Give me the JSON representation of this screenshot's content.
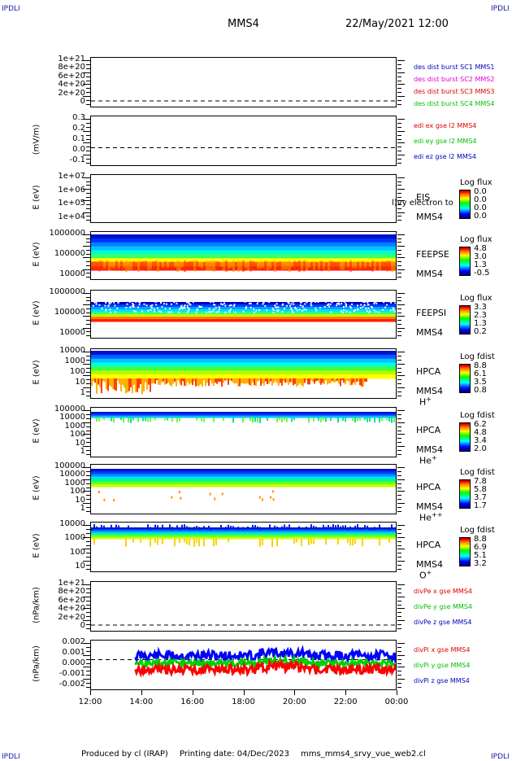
{
  "corner_label": "IPDLI",
  "header": {
    "spacecraft": "MMS4",
    "date": "22/May/2021 12:00"
  },
  "footer": {
    "produced_by": "Produced by cl (IRAP)",
    "printing_date": "Printing date: 04/Dec/2023",
    "file": "mms_mms4_srvy_vue_web2.cl"
  },
  "colors": {
    "red": "#ff0000",
    "green": "#00c000",
    "blue": "#0000ff",
    "magenta": "#e000e0"
  },
  "chart_data": [
    {
      "type": "line",
      "title": "des dist burst",
      "ylabel": "",
      "yticks": [
        "1e+21",
        "8e+20",
        "6e+20",
        "4e+20",
        "2e+20",
        "0"
      ],
      "series": [
        {
          "name": "des dist burst SC1 MMS1",
          "color": "#0000c0"
        },
        {
          "name": "des dist burst SC2 MMS2",
          "color": "#e000e0"
        },
        {
          "name": "des dist burst SC3 MMS3",
          "color": "#e00000"
        },
        {
          "name": "des dist burst SC4 MMS4",
          "color": "#00c000"
        }
      ]
    },
    {
      "type": "line",
      "ylabel": "(mV/m)",
      "yticks": [
        "0.3",
        "0.2",
        "0.1",
        "0.0",
        "-0.1"
      ],
      "series": [
        {
          "name": "edi ex gse l2 MMS4",
          "color": "#e00000"
        },
        {
          "name": "edi ey gse l2 MMS4",
          "color": "#00c000"
        },
        {
          "name": "edi ez gse l2 MMS4",
          "color": "#0000c0"
        }
      ]
    },
    {
      "type": "heatmap",
      "ylabel": "E (eV)",
      "yticks": [
        "1e+07",
        "1e+06",
        "1e+05",
        "1e+04"
      ],
      "instrument": "EIS",
      "sc": "MMS4",
      "overlay_text": "l)vy electron to",
      "colorbar": {
        "title": "Log flux",
        "values": [
          "0.0",
          "0.0",
          "0.0",
          "0.0"
        ]
      }
    },
    {
      "type": "heatmap",
      "ylabel": "E (eV)",
      "yticks": [
        "1000000",
        "100000",
        "10000"
      ],
      "instrument": "FEEPSE",
      "sc": "MMS4",
      "colorbar": {
        "title": "Log flux",
        "values": [
          "4.8",
          "3.0",
          "1.3",
          "-0.5"
        ]
      }
    },
    {
      "type": "heatmap",
      "ylabel": "E (eV)",
      "yticks": [
        "1000000",
        "100000",
        "10000"
      ],
      "instrument": "FEEPSI",
      "sc": "MMS4",
      "colorbar": {
        "title": "Log flux",
        "values": [
          "3.3",
          "2.3",
          "1.3",
          "0.2"
        ]
      }
    },
    {
      "type": "heatmap",
      "ylabel": "E (eV)",
      "yticks": [
        "10000",
        "1000",
        "100",
        "10",
        "1"
      ],
      "instrument": "HPCA",
      "sc": "MMS4",
      "species": "H",
      "charge": "+",
      "colorbar": {
        "title": "Log fdist",
        "values": [
          "8.8",
          "6.1",
          "3.5",
          "0.8"
        ]
      }
    },
    {
      "type": "heatmap",
      "ylabel": "E (eV)",
      "yticks": [
        "100000",
        "10000",
        "1000",
        "100",
        "10",
        "1"
      ],
      "instrument": "HPCA",
      "sc": "MMS4",
      "species": "He",
      "charge": "+",
      "colorbar": {
        "title": "Log fdist",
        "values": [
          "6.2",
          "4.8",
          "3.4",
          "2.0"
        ]
      }
    },
    {
      "type": "heatmap",
      "ylabel": "E (eV)",
      "yticks": [
        "100000",
        "10000",
        "1000",
        "100",
        "10",
        "1"
      ],
      "instrument": "HPCA",
      "sc": "MMS4",
      "species": "He",
      "charge": "++",
      "colorbar": {
        "title": "Log fdist",
        "values": [
          "7.8",
          "5.8",
          "3.7",
          "1.7"
        ]
      }
    },
    {
      "type": "heatmap",
      "ylabel": "E (eV)",
      "yticks": [
        "10000",
        "1000",
        "100",
        "10"
      ],
      "instrument": "HPCA",
      "sc": "MMS4",
      "species": "O",
      "charge": "+",
      "colorbar": {
        "title": "Log fdist",
        "values": [
          "8.8",
          "6.9",
          "5.1",
          "3.2"
        ]
      }
    },
    {
      "type": "line",
      "ylabel": "(nPa/km)",
      "yticks": [
        "1e+21",
        "8e+20",
        "6e+20",
        "4e+20",
        "2e+20",
        "0"
      ],
      "series": [
        {
          "name": "divPe x gse MMS4",
          "color": "#e00000"
        },
        {
          "name": "divPe y gse MMS4",
          "color": "#00c000"
        },
        {
          "name": "divPe z gse MMS4",
          "color": "#0000c0"
        }
      ]
    },
    {
      "type": "line",
      "ylabel": "(nPa/km)",
      "yticks": [
        "0.002",
        "0.001",
        "0.000",
        "-0.001",
        "-0.002"
      ],
      "series": [
        {
          "name": "divPi x gse MMS4",
          "color": "#e00000"
        },
        {
          "name": "divPi y gse MMS4",
          "color": "#00c000"
        },
        {
          "name": "divPi z gse MMS4",
          "color": "#0000c0"
        }
      ]
    }
  ],
  "x_axis": {
    "ticks": [
      "12:00",
      "14:00",
      "16:00",
      "18:00",
      "20:00",
      "22:00",
      "00:00"
    ]
  }
}
